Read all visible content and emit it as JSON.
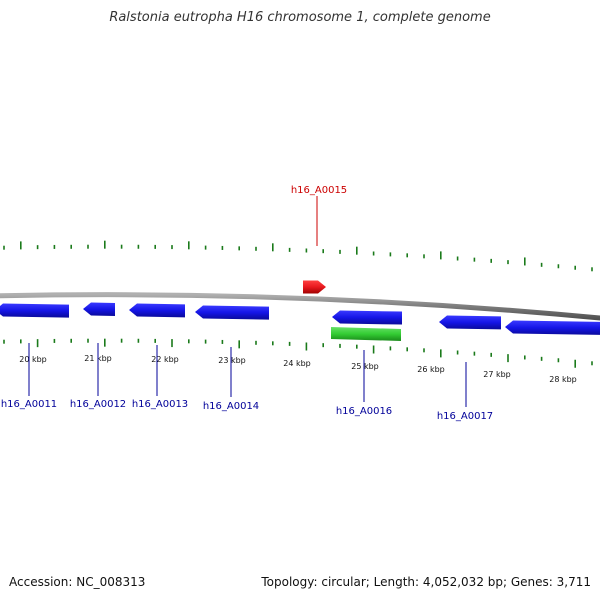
{
  "title": "Ralstonia eutropha H16 chromosome 1, complete genome",
  "footer": {
    "accession": "Accession: NC_008313",
    "summary": "Topology: circular; Length: 4,052,032 bp; Genes: 3,711"
  },
  "colors": {
    "backbone": "#808080",
    "forward_gene": "#e8191f",
    "reverse_gene": "#1515e6",
    "rna_gene": "#33cc33",
    "tick": "#1a7a1a",
    "forward_label": "#cc0000",
    "reverse_label": "#000099"
  },
  "ruler_labels": [
    "20 kbp",
    "21 kbp",
    "22 kbp",
    "23 kbp",
    "24 kbp",
    "25 kbp",
    "26 kbp",
    "27 kbp",
    "28 kbp"
  ],
  "genes": [
    {
      "label": "h16_A0011",
      "strand": "reverse"
    },
    {
      "label": "h16_A0012",
      "strand": "reverse"
    },
    {
      "label": "h16_A0013",
      "strand": "reverse"
    },
    {
      "label": "h16_A0014",
      "strand": "reverse"
    },
    {
      "label": "h16_A0015",
      "strand": "forward"
    },
    {
      "label": "h16_A0016",
      "strand": "reverse"
    },
    {
      "label": "h16_A0017",
      "strand": "reverse"
    }
  ],
  "rna_feature": {
    "strand": "reverse"
  }
}
